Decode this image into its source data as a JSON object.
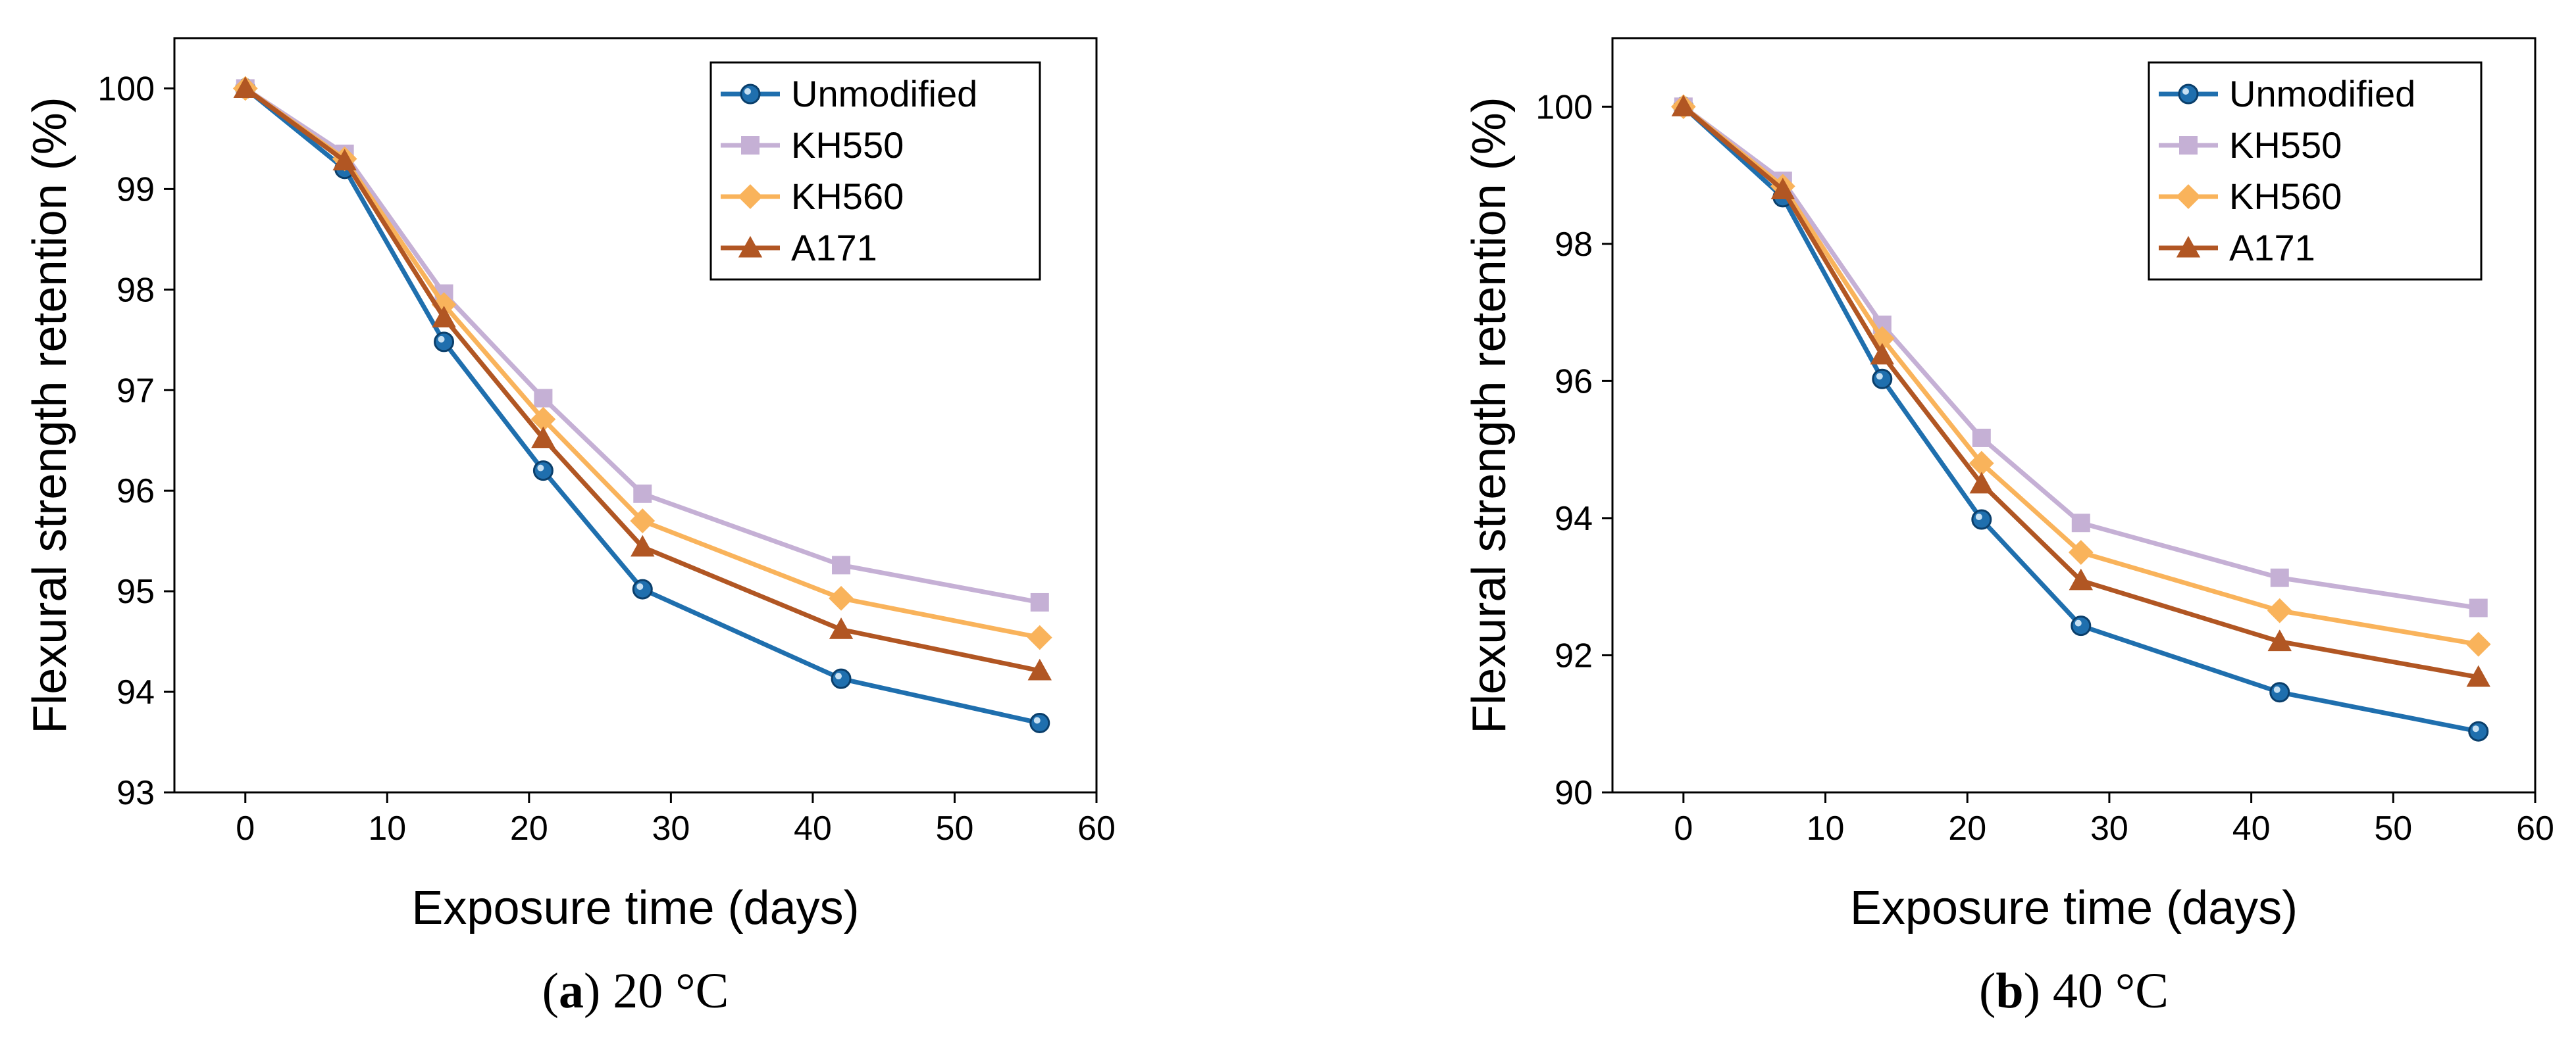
{
  "chart_data": [
    {
      "type": "line",
      "panel_letter": "a",
      "panel_text": " 20 °C",
      "xlabel": "Exposure time (days)",
      "ylabel": "Flexural strength retention (%)",
      "xlim": [
        -5,
        60
      ],
      "ylim": [
        93,
        100.5
      ],
      "xticks": [
        0,
        10,
        20,
        30,
        40,
        50,
        60
      ],
      "yticks": [
        93,
        94,
        95,
        96,
        97,
        98,
        99,
        100
      ],
      "x": [
        0,
        7,
        14,
        21,
        28,
        42,
        56
      ],
      "legend_position": "top-right",
      "series": [
        {
          "name": "Unmodified",
          "marker": "circle",
          "color": "#1f6fae",
          "values": [
            100,
            99.2,
            97.48,
            96.2,
            95.02,
            94.13,
            93.69
          ]
        },
        {
          "name": "KH550",
          "marker": "square",
          "color": "#c5b0d5",
          "values": [
            100,
            99.35,
            97.96,
            96.92,
            95.97,
            95.26,
            94.89
          ]
        },
        {
          "name": "KH560",
          "marker": "diamond",
          "color": "#f9b35b",
          "values": [
            100,
            99.3,
            97.85,
            96.71,
            95.7,
            94.93,
            94.54
          ]
        },
        {
          "name": "A171",
          "marker": "triangle",
          "color": "#b15623",
          "values": [
            100,
            99.28,
            97.72,
            96.52,
            95.44,
            94.62,
            94.21
          ]
        }
      ]
    },
    {
      "type": "line",
      "panel_letter": "b",
      "panel_text": " 40 °C",
      "xlabel": "Exposure time (days)",
      "ylabel": "Flexural strength retention (%)",
      "xlim": [
        -5,
        60
      ],
      "ylim": [
        90,
        101
      ],
      "xticks": [
        0,
        10,
        20,
        30,
        40,
        50,
        60
      ],
      "yticks": [
        90,
        92,
        94,
        96,
        98,
        100
      ],
      "x": [
        0,
        7,
        14,
        21,
        28,
        42,
        56
      ],
      "legend_position": "top-right",
      "series": [
        {
          "name": "Unmodified",
          "marker": "circle",
          "color": "#1f6fae",
          "values": [
            100,
            98.68,
            96.03,
            93.98,
            92.43,
            91.46,
            90.89
          ]
        },
        {
          "name": "KH550",
          "marker": "square",
          "color": "#c5b0d5",
          "values": [
            100,
            98.92,
            96.82,
            95.17,
            93.93,
            93.13,
            92.69
          ]
        },
        {
          "name": "KH560",
          "marker": "diamond",
          "color": "#f9b35b",
          "values": [
            100,
            98.84,
            96.62,
            94.8,
            93.5,
            92.65,
            92.16
          ]
        },
        {
          "name": "A171",
          "marker": "triangle",
          "color": "#b15623",
          "values": [
            100,
            98.79,
            96.38,
            94.5,
            93.09,
            92.2,
            91.68
          ]
        }
      ]
    }
  ]
}
